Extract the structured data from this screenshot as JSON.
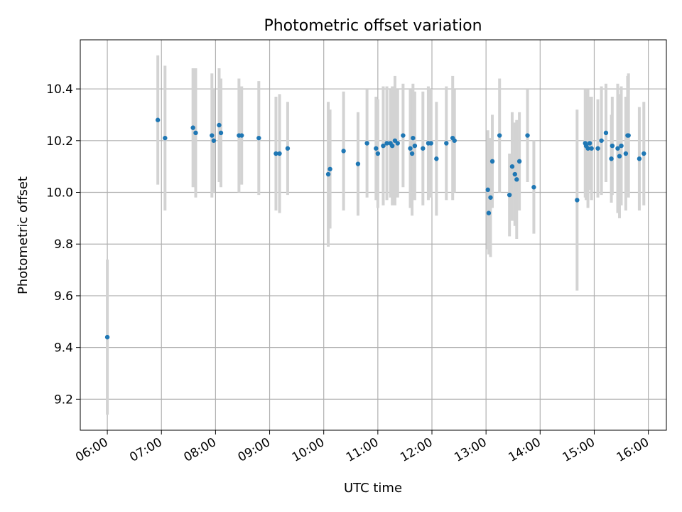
{
  "chart_data": {
    "type": "scatter",
    "title": "Photometric offset variation",
    "xlabel": "UTC time",
    "ylabel": "Photometric offset",
    "x_axis": {
      "type": "time",
      "tick_labels": [
        "06:00",
        "07:00",
        "08:00",
        "09:00",
        "10:00",
        "11:00",
        "12:00",
        "13:00",
        "14:00",
        "15:00",
        "16:00"
      ],
      "range": [
        "05:30",
        "16:20"
      ]
    },
    "y_axis": {
      "tick_values": [
        9.2,
        9.4,
        9.6,
        9.8,
        10.0,
        10.2,
        10.4
      ],
      "tick_labels": [
        "9.2",
        "9.4",
        "9.6",
        "9.8",
        "10.0",
        "10.2",
        "10.4"
      ],
      "range": [
        9.08,
        10.59
      ]
    },
    "grid": true,
    "legend": "none",
    "colors": {
      "point": "#1f77b4",
      "errorbar": "#d3d3d3",
      "grid": "#b0b0b0"
    },
    "series": [
      {
        "points": [
          [
            "06:00",
            9.44,
            0.3
          ],
          [
            "06:56",
            10.28,
            0.25
          ],
          [
            "07:04",
            10.21,
            0.28
          ],
          [
            "07:35",
            10.25,
            0.23
          ],
          [
            "07:38",
            10.23,
            0.25
          ],
          [
            "07:56",
            10.22,
            0.24
          ],
          [
            "07:58",
            10.2,
            0.2
          ],
          [
            "08:04",
            10.26,
            0.22
          ],
          [
            "08:06",
            10.23,
            0.21
          ],
          [
            "08:26",
            10.22,
            0.22
          ],
          [
            "08:29",
            10.22,
            0.19
          ],
          [
            "08:48",
            10.21,
            0.22
          ],
          [
            "09:07",
            10.15,
            0.22
          ],
          [
            "09:11",
            10.15,
            0.23
          ],
          [
            "09:20",
            10.17,
            0.18
          ],
          [
            "10:05",
            10.07,
            0.28
          ],
          [
            "10:07",
            10.09,
            0.23
          ],
          [
            "10:22",
            10.16,
            0.23
          ],
          [
            "10:38",
            10.11,
            0.2
          ],
          [
            "10:48",
            10.19,
            0.21
          ],
          [
            "10:58",
            10.17,
            0.2
          ],
          [
            "11:00",
            10.15,
            0.21
          ],
          [
            "11:06",
            10.18,
            0.23
          ],
          [
            "11:10",
            10.19,
            0.22
          ],
          [
            "11:14",
            10.19,
            0.21
          ],
          [
            "11:16",
            10.18,
            0.23
          ],
          [
            "11:19",
            10.2,
            0.25
          ],
          [
            "11:22",
            10.19,
            0.21
          ],
          [
            "11:28",
            10.22,
            0.2
          ],
          [
            "11:36",
            10.17,
            0.23
          ],
          [
            "11:38",
            10.15,
            0.24
          ],
          [
            "11:39",
            10.21,
            0.21
          ],
          [
            "11:41",
            10.18,
            0.21
          ],
          [
            "11:50",
            10.17,
            0.22
          ],
          [
            "11:56",
            10.19,
            0.22
          ],
          [
            "11:59",
            10.19,
            0.21
          ],
          [
            "12:05",
            10.13,
            0.22
          ],
          [
            "12:16",
            10.19,
            0.22
          ],
          [
            "12:23",
            10.21,
            0.24
          ],
          [
            "12:25",
            10.2,
            0.2
          ],
          [
            "13:02",
            10.01,
            0.23
          ],
          [
            "13:03",
            9.92,
            0.16
          ],
          [
            "13:05",
            9.98,
            0.23
          ],
          [
            "13:07",
            10.12,
            0.18
          ],
          [
            "13:15",
            10.22,
            0.22
          ],
          [
            "13:26",
            9.99,
            0.16
          ],
          [
            "13:29",
            10.1,
            0.21
          ],
          [
            "13:32",
            10.07,
            0.2
          ],
          [
            "13:34",
            10.05,
            0.23
          ],
          [
            "13:37",
            10.12,
            0.19
          ],
          [
            "13:46",
            10.22,
            0.18
          ],
          [
            "13:53",
            10.02,
            0.18
          ],
          [
            "14:41",
            9.97,
            0.35
          ],
          [
            "14:50",
            10.19,
            0.21
          ],
          [
            "14:51",
            10.18,
            0.21
          ],
          [
            "14:53",
            10.17,
            0.23
          ],
          [
            "14:55",
            10.19,
            0.18
          ],
          [
            "14:57",
            10.17,
            0.2
          ],
          [
            "15:04",
            10.17,
            0.19
          ],
          [
            "15:08",
            10.2,
            0.21
          ],
          [
            "15:13",
            10.23,
            0.19
          ],
          [
            "15:19",
            10.13,
            0.17
          ],
          [
            "15:20",
            10.18,
            0.19
          ],
          [
            "15:26",
            10.17,
            0.25
          ],
          [
            "15:28",
            10.14,
            0.24
          ],
          [
            "15:30",
            10.18,
            0.23
          ],
          [
            "15:35",
            10.15,
            0.22
          ],
          [
            "15:37",
            10.22,
            0.23
          ],
          [
            "15:38",
            10.22,
            0.24
          ],
          [
            "15:50",
            10.13,
            0.2
          ],
          [
            "15:55",
            10.15,
            0.2
          ]
        ]
      }
    ]
  }
}
